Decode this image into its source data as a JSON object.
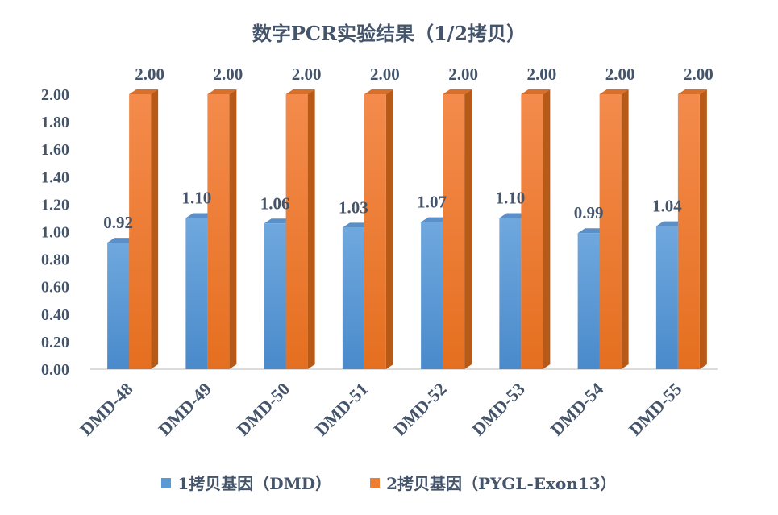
{
  "chart_data": {
    "type": "bar",
    "title": "数字PCR实验结果（1/2拷贝）",
    "categories": [
      "DMD-48",
      "DMD-49",
      "DMD-50",
      "DMD-51",
      "DMD-52",
      "DMD-53",
      "DMD-54",
      "DMD-55"
    ],
    "series": [
      {
        "name": "1拷贝基因（DMD）",
        "values": [
          0.92,
          1.1,
          1.06,
          1.03,
          1.07,
          1.1,
          0.99,
          1.04
        ],
        "labels": [
          "0.92",
          "1.10",
          "1.06",
          "1.03",
          "1.07",
          "1.10",
          "0.99",
          "1.04"
        ],
        "color": "#5B9BD5"
      },
      {
        "name": "2拷贝基因（PYGL-Exon13）",
        "values": [
          2.0,
          2.0,
          2.0,
          2.0,
          2.0,
          2.0,
          2.0,
          2.0
        ],
        "labels": [
          "2.00",
          "2.00",
          "2.00",
          "2.00",
          "2.00",
          "2.00",
          "2.00",
          "2.00"
        ],
        "color": "#ED7D31"
      }
    ],
    "yticks": [
      "0.00",
      "0.20",
      "0.40",
      "0.60",
      "0.80",
      "1.00",
      "1.20",
      "1.40",
      "1.60",
      "1.80",
      "2.00"
    ],
    "ylim": [
      0,
      2.0
    ],
    "grid": false,
    "legend": "bottom",
    "style": "3d-bar"
  }
}
